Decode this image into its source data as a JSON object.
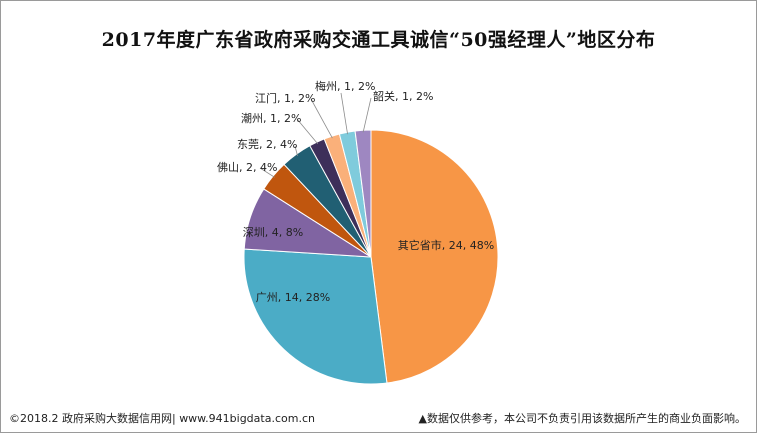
{
  "title": "2017年度广东省政府采购交通工具诚信“50强经理人”地区分布",
  "footer": {
    "left": "©2018.2 政府采购大数据信用网| www.941bigdata.com.cn",
    "right": "▲数据仅供参考，本公司不负责引用该数据所产生的商业负面影响。"
  },
  "chart_data": {
    "type": "pie",
    "title": "2017年度广东省政府采购交通工具诚信“50强经理人”地区分布",
    "slices": [
      {
        "name": "其它省市",
        "value": 24,
        "percent": "48%",
        "color": "#F79646"
      },
      {
        "name": "广州",
        "value": 14,
        "percent": "28%",
        "color": "#4BACC6"
      },
      {
        "name": "深圳",
        "value": 4,
        "percent": "8%",
        "color": "#8064A2"
      },
      {
        "name": "佛山",
        "value": 2,
        "percent": "4%",
        "color": "#C0560E"
      },
      {
        "name": "东莞",
        "value": 2,
        "percent": "4%",
        "color": "#215F73"
      },
      {
        "name": "潮州",
        "value": 1,
        "percent": "2%",
        "color": "#3D2F5A"
      },
      {
        "name": "江门",
        "value": 1,
        "percent": "2%",
        "color": "#FAB07A"
      },
      {
        "name": "梅州",
        "value": 1,
        "percent": "2%",
        "color": "#7FCBDC"
      },
      {
        "name": "韶关",
        "value": 1,
        "percent": "2%",
        "color": "#9E87C1"
      }
    ]
  }
}
